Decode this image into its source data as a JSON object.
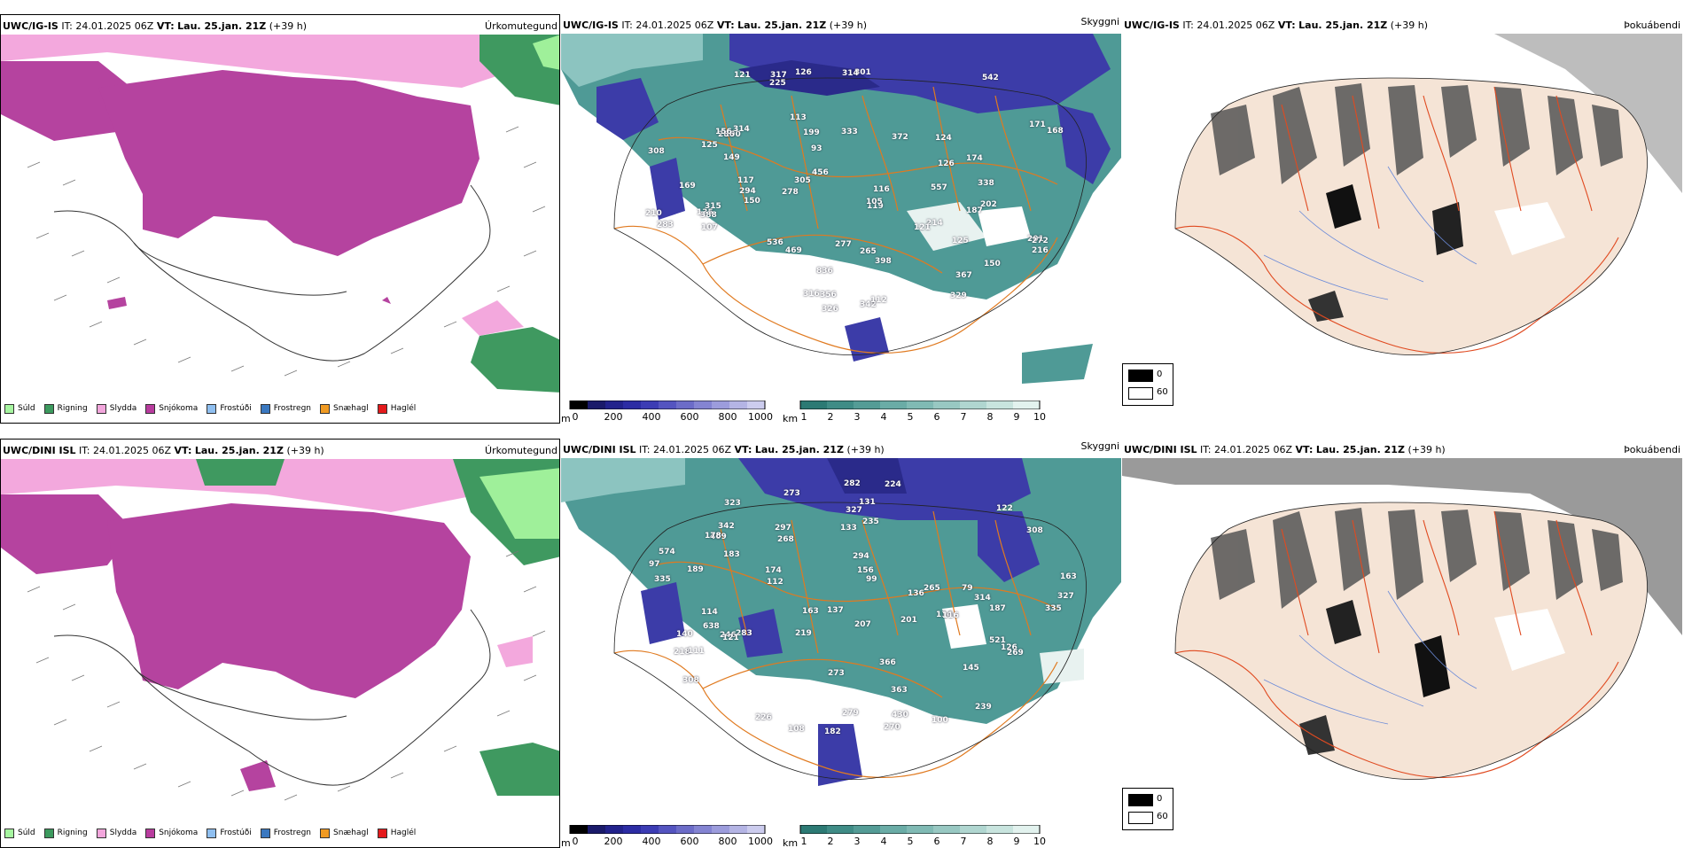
{
  "rows": [
    {
      "model": "UWC/IG-IS",
      "it_label": "IT:",
      "it_value": "24.01.2025 06Z",
      "vt_label": "VT:",
      "vt_value": "Lau. 25.jan. 21Z",
      "lead": "(+39 h)",
      "spot_values": [
        "169",
        "214",
        "135",
        "201",
        "100",
        "316",
        "93",
        "117",
        "199",
        "125",
        "119",
        "168",
        "125",
        "126",
        "107",
        "113",
        "329",
        "150",
        "149",
        "367",
        "536",
        "272",
        "342",
        "294",
        "314",
        "301",
        "121",
        "278",
        "202",
        "225",
        "174",
        "388",
        "283",
        "315",
        "277",
        "333",
        "356",
        "542",
        "171",
        "314",
        "456",
        "469",
        "398",
        "317",
        "326",
        "338",
        "286",
        "216",
        "210",
        "156",
        "150",
        "124",
        "557",
        "126",
        "121",
        "112",
        "105",
        "116",
        "308",
        "372",
        "305",
        "836",
        "187",
        "265"
      ]
    },
    {
      "model": "UWC/DINI ISL",
      "it_label": "IT:",
      "it_value": "24.01.2025 06Z",
      "vt_label": "VT:",
      "vt_value": "Lau. 25.jan. 21Z",
      "lead": "(+39 h)",
      "spot_values": [
        "187",
        "163",
        "133",
        "136",
        "114",
        "122",
        "145",
        "174",
        "283",
        "99",
        "114",
        "131",
        "137",
        "116",
        "366",
        "430",
        "574",
        "521",
        "189",
        "218",
        "273",
        "224",
        "265",
        "246",
        "270",
        "638",
        "409",
        "207",
        "108",
        "97",
        "126",
        "183",
        "239",
        "182",
        "269",
        "235",
        "201",
        "226",
        "273",
        "335",
        "297",
        "327",
        "314",
        "140",
        "279",
        "294",
        "335",
        "308",
        "363",
        "268",
        "282",
        "342",
        "327",
        "323",
        "219",
        "178",
        "121",
        "156",
        "112",
        "111",
        "100",
        "79",
        "163",
        "308"
      ]
    }
  ],
  "panels": {
    "precip": {
      "name": "Úrkomutegund"
    },
    "cloud": {
      "name": "Skyggni"
    },
    "fog": {
      "name": "Þokuábendi"
    }
  },
  "precip_legend": [
    {
      "label": "Súld",
      "color": "#a6f5a0"
    },
    {
      "label": "Rigning",
      "color": "#3c9a5e"
    },
    {
      "label": "Slydda",
      "color": "#f2a6dc"
    },
    {
      "label": "Snjókoma",
      "color": "#b83c9e"
    },
    {
      "label": "Frostúði",
      "color": "#8fbff0"
    },
    {
      "label": "Frostregn",
      "color": "#3a78c0"
    },
    {
      "label": "Snæhagl",
      "color": "#f09a22"
    },
    {
      "label": "Haglél",
      "color": "#e41a1c"
    }
  ],
  "ceiling_bar": {
    "unit": "m",
    "ticks": [
      "0",
      "200",
      "400",
      "600",
      "800",
      "1000"
    ]
  },
  "visibility_bar": {
    "unit": "km",
    "ticks": [
      "1",
      "2",
      "3",
      "4",
      "5",
      "6",
      "7",
      "8",
      "9",
      "10"
    ]
  },
  "fog_legend": {
    "ticks": [
      "0",
      "60"
    ]
  },
  "colors": {
    "snow": "#b5439f",
    "sleet": "#f3a8dd",
    "rain": "#3f9960",
    "drizzle": "#9ff09a",
    "teal": "#4f9a96",
    "blue": "#3c3ca8",
    "road": "#e07a20",
    "land": "#f5e4d6"
  }
}
